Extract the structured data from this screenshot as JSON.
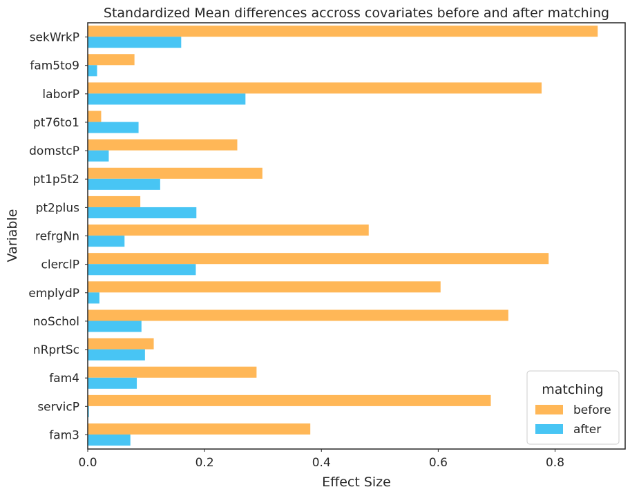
{
  "chart_data": {
    "type": "bar",
    "orientation": "horizontal",
    "title": "Standardized Mean differences accross covariates before and after matching",
    "xlabel": "Effect Size",
    "ylabel": "Variable",
    "xlim": [
      0,
      0.92
    ],
    "xticks": [
      "0.0",
      "0.2",
      "0.4",
      "0.6",
      "0.8"
    ],
    "grid": false,
    "legend": {
      "title": "matching",
      "position": "bottom-right"
    },
    "categories": [
      "sekWrkP",
      "fam5to9",
      "laborP",
      "pt76to1",
      "domstcP",
      "pt1p5t2",
      "pt2plus",
      "refrgNn",
      "clerclP",
      "emplydP",
      "noSchol",
      "nRprtSc",
      "fam4",
      "servicP",
      "fam3"
    ],
    "series": [
      {
        "name": "before",
        "color": "#ffb757",
        "values": [
          0.873,
          0.08,
          0.777,
          0.023,
          0.256,
          0.299,
          0.09,
          0.481,
          0.789,
          0.604,
          0.72,
          0.113,
          0.289,
          0.69,
          0.381
        ]
      },
      {
        "name": "after",
        "color": "#48c5f4",
        "values": [
          0.16,
          0.016,
          0.27,
          0.087,
          0.036,
          0.124,
          0.186,
          0.063,
          0.185,
          0.02,
          0.092,
          0.098,
          0.084,
          0.002,
          0.073
        ]
      }
    ]
  }
}
